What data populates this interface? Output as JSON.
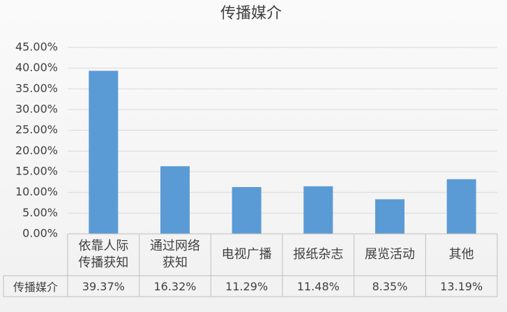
{
  "chart_data": {
    "type": "bar",
    "title": "传播媒介",
    "categories": [
      "依靠人际传播获知",
      "通过网络获知",
      "电视广播",
      "报纸杂志",
      "展览活动",
      "其他"
    ],
    "series": [
      {
        "name": "传播媒介",
        "color": "#5b9bd5",
        "values": [
          39.37,
          16.32,
          11.29,
          11.48,
          8.35,
          13.19
        ],
        "value_labels": [
          "39.37%",
          "16.32%",
          "11.29%",
          "11.48%",
          "8.35%",
          "13.19%"
        ]
      }
    ],
    "ylim": [
      0,
      45
    ],
    "yticks": [
      {
        "value": 0,
        "label": "0.00%"
      },
      {
        "value": 5,
        "label": "5.00%"
      },
      {
        "value": 10,
        "label": "10.00%"
      },
      {
        "value": 15,
        "label": "15.00%"
      },
      {
        "value": 20,
        "label": "20.00%"
      },
      {
        "value": 25,
        "label": "25.00%"
      },
      {
        "value": 30,
        "label": "30.00%"
      },
      {
        "value": 35,
        "label": "35.00%"
      },
      {
        "value": 40,
        "label": "40.00%"
      },
      {
        "value": 45,
        "label": "45.00%"
      }
    ],
    "grid": true
  }
}
